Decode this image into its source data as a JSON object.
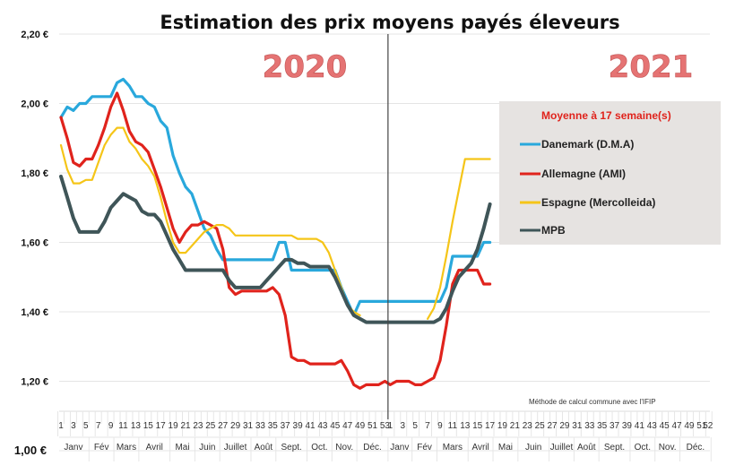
{
  "chart_data": {
    "type": "line",
    "title": "Estimation des prix moyens payés éleveurs",
    "xlabel": "",
    "ylabel": "",
    "ylim": [
      1.0,
      2.2
    ],
    "yticks": [
      "1,00 €",
      "1,20 €",
      "1,40 €",
      "1,60 €",
      "1,80 €",
      "2,00 €",
      "2,20 €"
    ],
    "ytick_values": [
      1.0,
      1.2,
      1.4,
      1.6,
      1.8,
      2.0,
      2.2
    ],
    "grid": true,
    "year_labels": [
      "2020",
      "2021"
    ],
    "year_divider_after_week": 53,
    "weeks_2020": 53,
    "weeks_2021": 52,
    "xtick_labels_2020": [
      "1",
      "3",
      "5",
      "7",
      "9",
      "11",
      "13",
      "15",
      "17",
      "19",
      "21",
      "23",
      "25",
      "27",
      "29",
      "31",
      "33",
      "35",
      "37",
      "39",
      "41",
      "43",
      "45",
      "47",
      "49",
      "51",
      "53"
    ],
    "xtick_labels_2021": [
      "1",
      "3",
      "5",
      "7",
      "9",
      "11",
      "13",
      "15",
      "17",
      "19",
      "21",
      "23",
      "25",
      "27",
      "29",
      "31",
      "33",
      "35",
      "37",
      "39",
      "41",
      "43",
      "45",
      "47",
      "49",
      "51",
      "52"
    ],
    "months_2020": [
      {
        "label": "Janv",
        "start": 1,
        "end": 5
      },
      {
        "label": "Fév",
        "start": 6,
        "end": 9
      },
      {
        "label": "Mars",
        "start": 10,
        "end": 13
      },
      {
        "label": "Avril",
        "start": 14,
        "end": 18
      },
      {
        "label": "Mai",
        "start": 19,
        "end": 22
      },
      {
        "label": "Juin",
        "start": 23,
        "end": 26
      },
      {
        "label": "Juillet",
        "start": 27,
        "end": 31
      },
      {
        "label": "Août",
        "start": 32,
        "end": 35
      },
      {
        "label": "Sept.",
        "start": 36,
        "end": 40
      },
      {
        "label": "Oct.",
        "start": 41,
        "end": 44
      },
      {
        "label": "Nov.",
        "start": 45,
        "end": 48
      },
      {
        "label": "Déc.",
        "start": 49,
        "end": 53
      }
    ],
    "months_2021": [
      {
        "label": "Janv",
        "start": 1,
        "end": 4
      },
      {
        "label": "Fév",
        "start": 5,
        "end": 8
      },
      {
        "label": "Mars",
        "start": 9,
        "end": 13
      },
      {
        "label": "Avril",
        "start": 14,
        "end": 17
      },
      {
        "label": "Mai",
        "start": 18,
        "end": 21
      },
      {
        "label": "Juin",
        "start": 22,
        "end": 26
      },
      {
        "label": "Juillet",
        "start": 27,
        "end": 30
      },
      {
        "label": "Août",
        "start": 31,
        "end": 34
      },
      {
        "label": "Sept.",
        "start": 35,
        "end": 39
      },
      {
        "label": "Oct.",
        "start": 40,
        "end": 43
      },
      {
        "label": "Nov.",
        "start": 44,
        "end": 47
      },
      {
        "label": "Déc.",
        "start": 48,
        "end": 52
      }
    ],
    "legend": {
      "title": "Moyenne à  17 semaine(s)",
      "position": "right"
    },
    "series": [
      {
        "name": "Danemark (D.M.A)",
        "color": "#29a8dc",
        "values_2020": [
          1.96,
          1.99,
          1.98,
          2.0,
          2.0,
          2.02,
          2.02,
          2.02,
          2.02,
          2.06,
          2.07,
          2.05,
          2.02,
          2.02,
          2.0,
          1.99,
          1.95,
          1.93,
          1.85,
          1.8,
          1.76,
          1.74,
          1.69,
          1.64,
          1.62,
          1.58,
          1.55,
          1.55,
          1.55,
          1.55,
          1.55,
          1.55,
          1.55,
          1.55,
          1.55,
          1.6,
          1.6,
          1.52,
          1.52,
          1.52,
          1.52,
          1.52,
          1.52,
          1.52,
          1.52,
          1.47,
          1.43,
          1.39,
          1.43,
          1.43,
          1.43,
          1.43,
          1.43
        ],
        "values_2021": [
          1.43,
          1.43,
          1.43,
          1.43,
          1.43,
          1.43,
          1.43,
          1.43,
          1.43,
          1.47,
          1.56,
          1.56,
          1.56,
          1.56,
          1.56,
          1.6,
          1.6
        ]
      },
      {
        "name": "Allemagne (AMI)",
        "color": "#e0231c",
        "values_2020": [
          1.96,
          1.9,
          1.83,
          1.82,
          1.84,
          1.84,
          1.88,
          1.93,
          1.99,
          2.03,
          1.98,
          1.92,
          1.89,
          1.88,
          1.86,
          1.81,
          1.76,
          1.7,
          1.64,
          1.6,
          1.63,
          1.65,
          1.65,
          1.66,
          1.65,
          1.64,
          1.58,
          1.47,
          1.45,
          1.46,
          1.46,
          1.46,
          1.46,
          1.46,
          1.47,
          1.45,
          1.39,
          1.27,
          1.26,
          1.26,
          1.25,
          1.25,
          1.25,
          1.25,
          1.25,
          1.26,
          1.23,
          1.19,
          1.18,
          1.19,
          1.19,
          1.19,
          1.2
        ],
        "values_2021": [
          1.19,
          1.2,
          1.2,
          1.2,
          1.19,
          1.19,
          1.2,
          1.21,
          1.26,
          1.36,
          1.48,
          1.52,
          1.52,
          1.52,
          1.52,
          1.48,
          1.48
        ]
      },
      {
        "name": "Espagne (Mercolleida)",
        "color": "#f5c518",
        "values_2020": [
          1.88,
          1.81,
          1.77,
          1.77,
          1.78,
          1.78,
          1.83,
          1.88,
          1.91,
          1.93,
          1.93,
          1.89,
          1.87,
          1.84,
          1.82,
          1.79,
          1.73,
          1.66,
          1.6,
          1.57,
          1.57,
          1.59,
          1.61,
          1.63,
          1.64,
          1.65,
          1.65,
          1.64,
          1.62,
          1.62,
          1.62,
          1.62,
          1.62,
          1.62,
          1.62,
          1.62,
          1.62,
          1.62,
          1.61,
          1.61,
          1.61,
          1.61,
          1.6,
          1.57,
          1.52,
          1.47,
          1.42,
          1.4,
          1.39,
          null,
          null,
          null,
          null
        ],
        "values_2021": [
          null,
          null,
          null,
          null,
          null,
          null,
          1.38,
          1.41,
          1.47,
          1.56,
          1.66,
          1.75,
          1.84,
          1.84,
          1.84,
          1.84,
          1.84
        ]
      },
      {
        "name": "MPB",
        "color": "#3f5558",
        "values_2020": [
          1.79,
          1.73,
          1.67,
          1.63,
          1.63,
          1.63,
          1.63,
          1.66,
          1.7,
          1.72,
          1.74,
          1.73,
          1.72,
          1.69,
          1.68,
          1.68,
          1.66,
          1.62,
          1.58,
          1.55,
          1.52,
          1.52,
          1.52,
          1.52,
          1.52,
          1.52,
          1.52,
          1.49,
          1.47,
          1.47,
          1.47,
          1.47,
          1.47,
          1.49,
          1.51,
          1.53,
          1.55,
          1.55,
          1.54,
          1.54,
          1.53,
          1.53,
          1.53,
          1.53,
          1.5,
          1.46,
          1.42,
          1.39,
          1.38,
          1.37,
          1.37,
          1.37,
          1.37
        ],
        "values_2021": [
          1.37,
          1.37,
          1.37,
          1.37,
          1.37,
          1.37,
          1.37,
          1.37,
          1.38,
          1.41,
          1.46,
          1.5,
          1.52,
          1.54,
          1.58,
          1.64,
          1.71
        ]
      }
    ],
    "annotation": "Méthode de calcul commune avec l'IFIP"
  }
}
